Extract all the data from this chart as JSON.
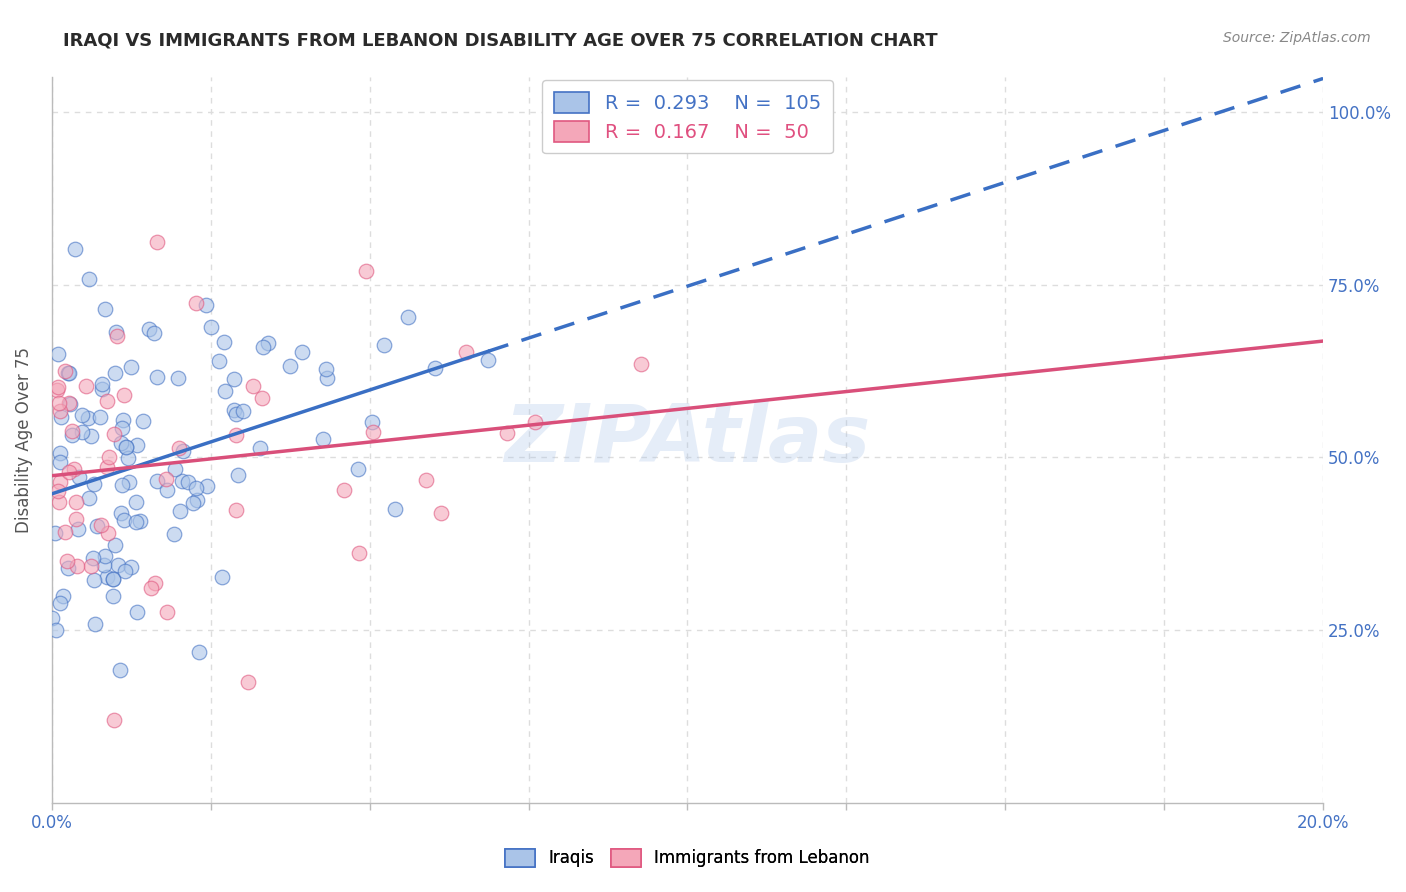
{
  "title": "IRAQI VS IMMIGRANTS FROM LEBANON DISABILITY AGE OVER 75 CORRELATION CHART",
  "source": "Source: ZipAtlas.com",
  "ylabel": "Disability Age Over 75",
  "R_iraqi": 0.293,
  "N_iraqi": 105,
  "R_lebanon": 0.167,
  "N_lebanon": 50,
  "color_iraqi_fill": "#aac4e8",
  "color_iraqi_edge": "#4472c4",
  "color_lebanon_fill": "#f4a7b9",
  "color_lebanon_edge": "#e05880",
  "color_iraqi_line": "#3a6fc4",
  "color_lebanon_line": "#d94f7a",
  "color_iraqi_text": "#4472c4",
  "color_lebanon_text": "#e05080",
  "watermark_color": "#aac4e8",
  "grid_color": "#dddddd",
  "tick_color": "#4472c4",
  "xlim": [
    0.0,
    0.2
  ],
  "ylim": [
    0.0,
    1.05
  ],
  "yticks": [
    0.25,
    0.5,
    0.75,
    1.0
  ],
  "ytick_labels": [
    "25.0%",
    "50.0%",
    "75.0%",
    "100.0%"
  ]
}
